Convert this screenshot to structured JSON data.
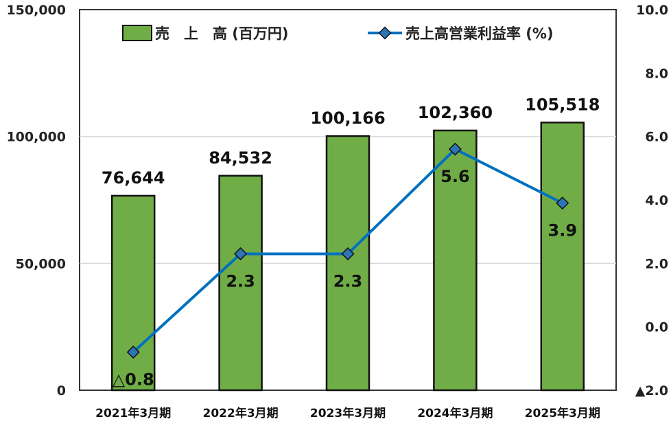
{
  "chart_data": {
    "type": "bar",
    "categories": [
      "2021年3月期",
      "2022年3月期",
      "2023年3月期",
      "2024年3月期",
      "2025年3月期"
    ],
    "series": [
      {
        "name": "売　上　高 (百万円)",
        "type": "bar",
        "axis": "left",
        "values": [
          76644,
          84532,
          100166,
          102360,
          105518
        ],
        "labels": [
          "76,644",
          "84,532",
          "100,166",
          "102,360",
          "105,518"
        ]
      },
      {
        "name": "売上高営業利益率 (%)",
        "type": "line",
        "axis": "right",
        "values": [
          -0.8,
          2.3,
          2.3,
          5.6,
          3.9
        ],
        "labels": [
          "△0.8",
          "2.3",
          "2.3",
          "5.6",
          "3.9"
        ]
      }
    ],
    "y_left": {
      "ylim": [
        0,
        150000
      ],
      "ticks": [
        0,
        50000,
        100000,
        150000
      ],
      "tick_labels": [
        "0",
        "50,000",
        "100,000",
        "150,000"
      ]
    },
    "y_right": {
      "ylim": [
        -2,
        10
      ],
      "ticks": [
        -2,
        0,
        2,
        4,
        6,
        8,
        10
      ],
      "tick_labels": [
        "▲2.0",
        "0.0",
        "2.0",
        "4.0",
        "6.0",
        "8.0",
        "10.0"
      ]
    },
    "grid": true,
    "legend": "top",
    "colors": {
      "bar_fill": "#70AD47",
      "bar_edge": "#111111",
      "line": "#0070C0",
      "marker": "#2E75B6",
      "grid": "#D9D9D9"
    }
  }
}
